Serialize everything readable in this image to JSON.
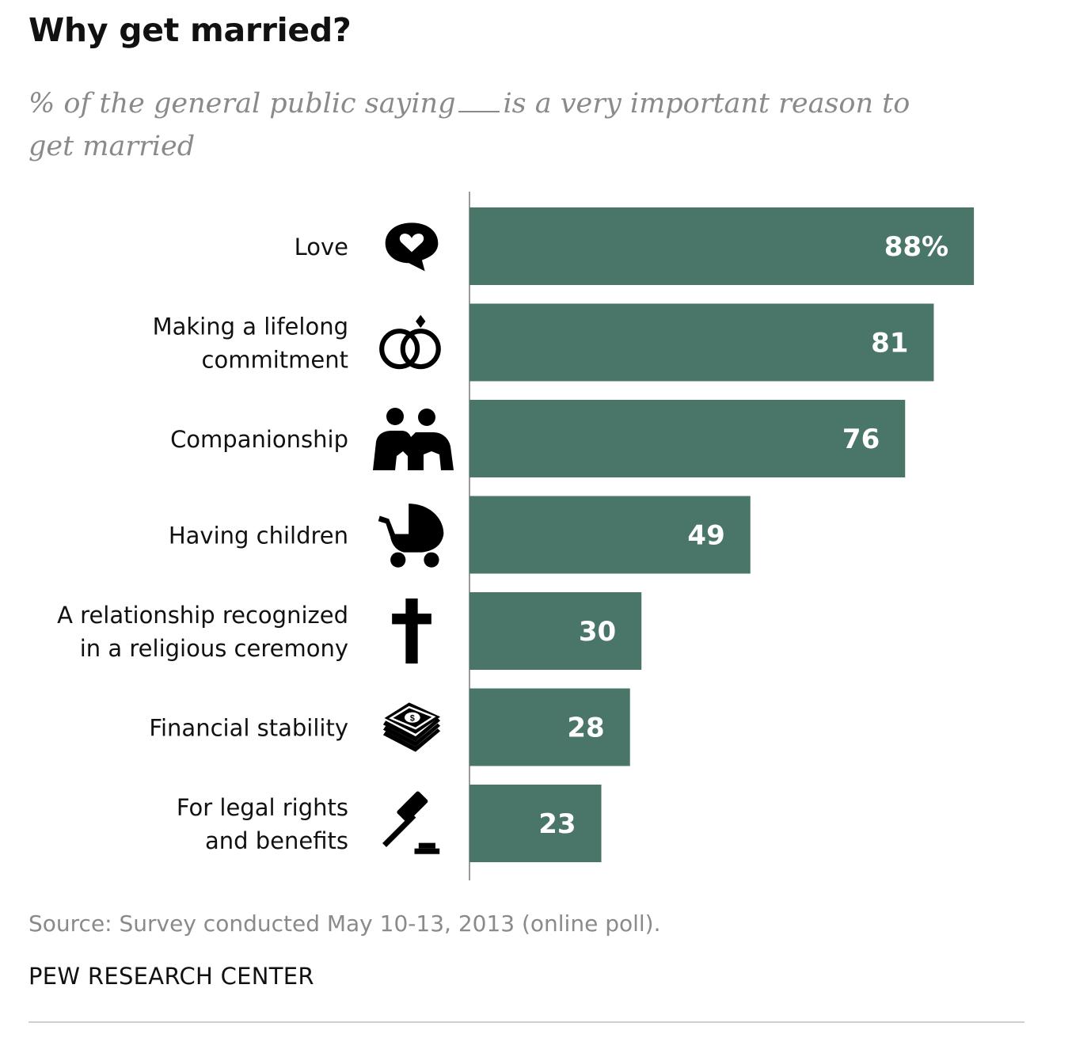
{
  "title": "Why get married?",
  "subtitle": {
    "before_blank": "% of the general public saying",
    "after_blank": "is a very important reason to get married"
  },
  "chart_data": {
    "type": "bar",
    "orientation": "horizontal",
    "title": "Why get married?",
    "categories": [
      [
        "Love"
      ],
      [
        "Making a lifelong",
        "commitment"
      ],
      [
        "Companionship"
      ],
      [
        "Having children"
      ],
      [
        "A relationship recognized",
        "in a religious ceremony"
      ],
      [
        "Financial stability"
      ],
      [
        "For legal rights",
        "and benefits"
      ]
    ],
    "values": [
      88,
      81,
      76,
      49,
      30,
      28,
      23
    ],
    "value_labels": [
      "88%",
      "81",
      "76",
      "49",
      "30",
      "28",
      "23"
    ],
    "icons": [
      "heart-speech-bubble-icon",
      "wedding-rings-icon",
      "couple-icon",
      "baby-stroller-icon",
      "cross-icon",
      "money-stack-icon",
      "gavel-icon"
    ],
    "xlim": [
      0,
      100
    ],
    "bar_color": "#4a7669",
    "label_color": "#ffffff",
    "grid": false
  },
  "source": "Source: Survey conducted May 10-13, 2013 (online poll).",
  "organization": "PEW RESEARCH CENTER"
}
